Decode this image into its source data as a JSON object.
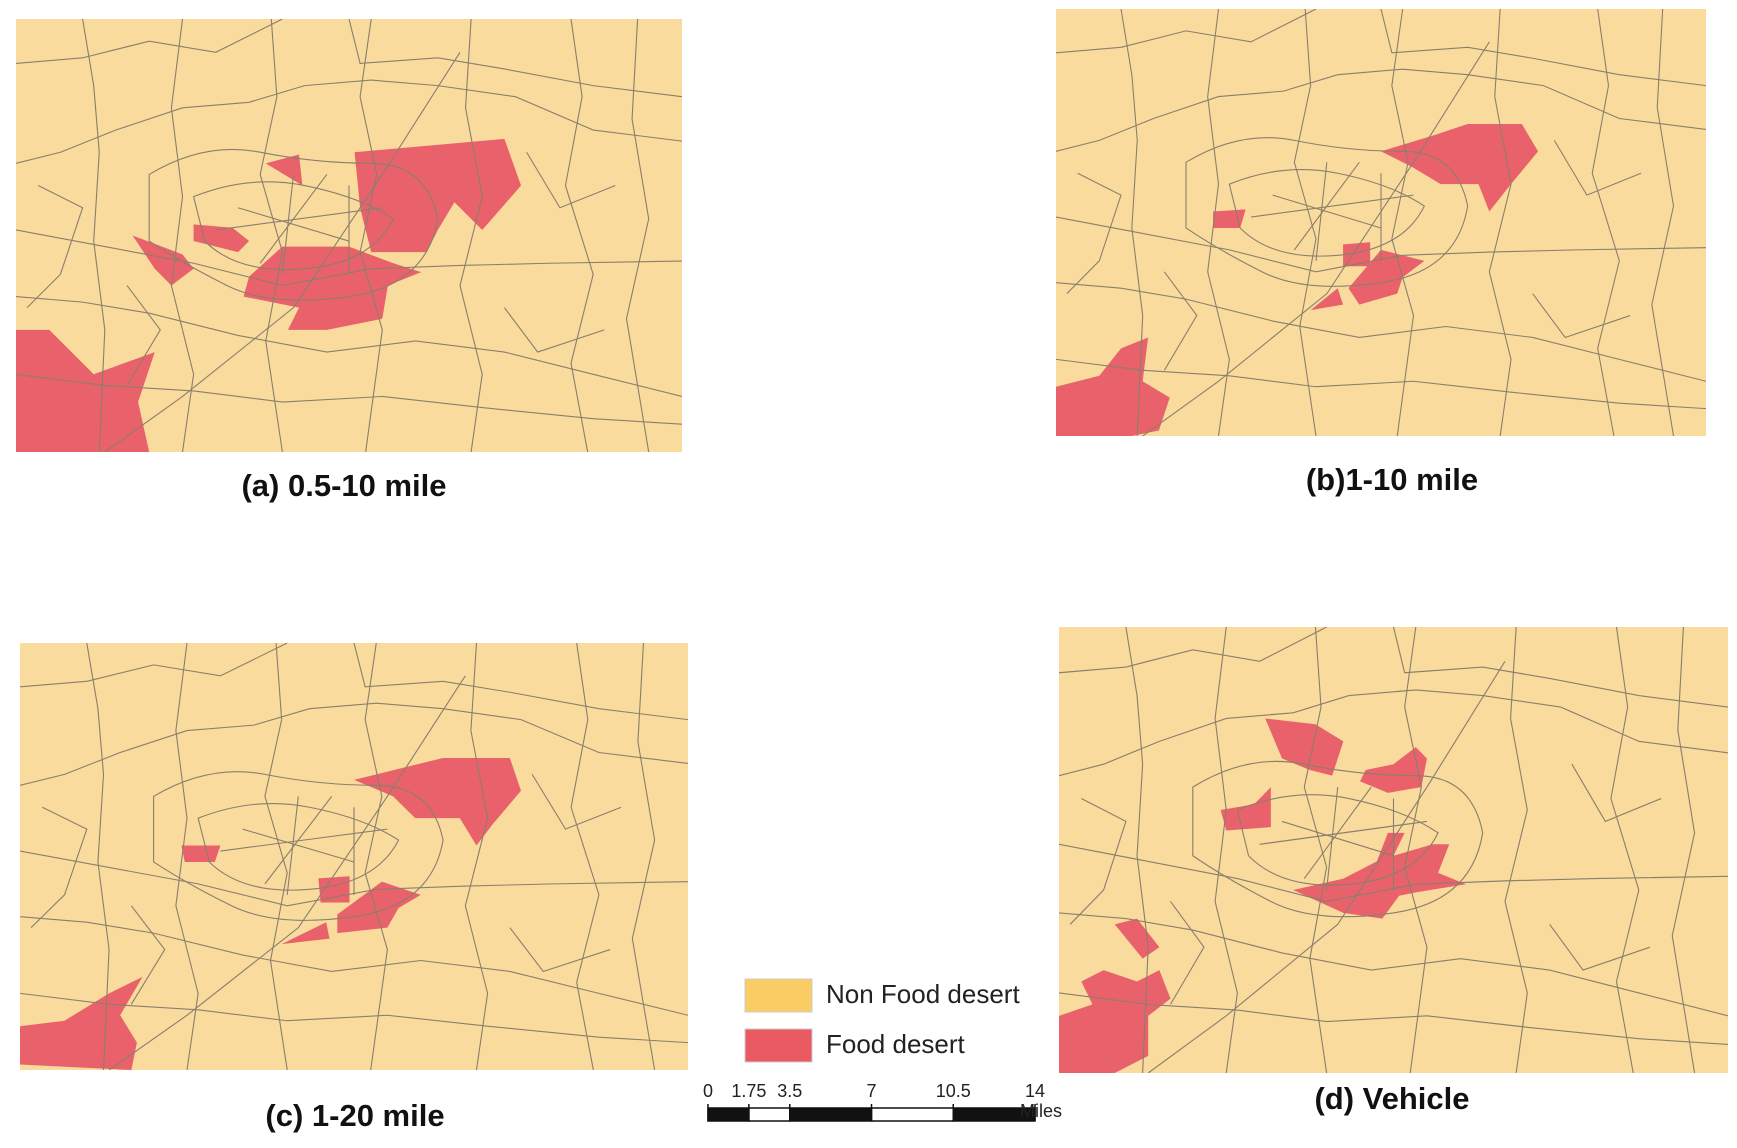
{
  "panels": [
    {
      "caption": "(a) 0.5-10 mile"
    },
    {
      "caption": "(b)1-10 mile"
    },
    {
      "caption": "(c) 1-20 mile"
    },
    {
      "caption": "(d) Vehicle"
    }
  ],
  "legend": [
    {
      "label": "Non Food desert",
      "color": "#f9cd63"
    },
    {
      "label": "Food desert",
      "color": "#ea5a62"
    }
  ],
  "scale_bar": {
    "ticks": [
      0,
      1.75,
      3.5,
      7,
      10.5,
      14
    ],
    "unit": "Miles"
  }
}
